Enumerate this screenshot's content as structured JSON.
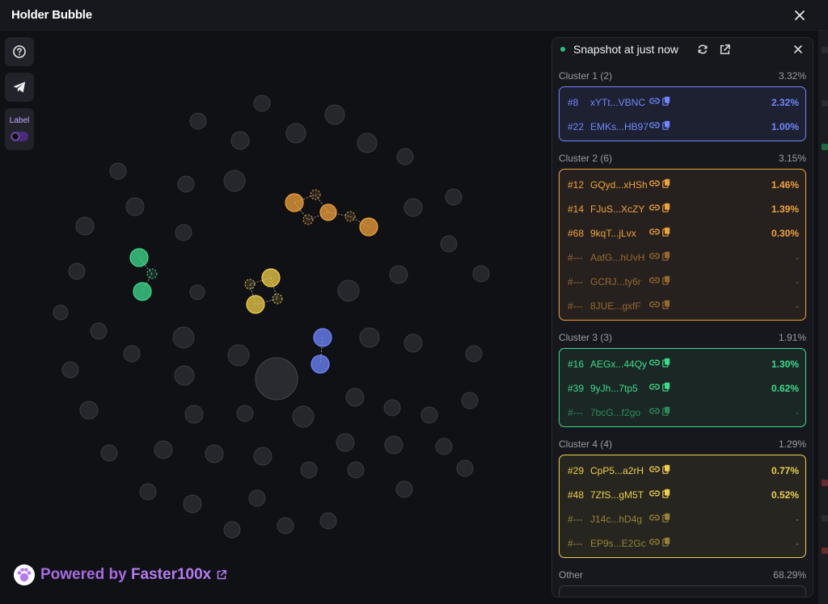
{
  "app": {
    "title": "Holder Bubble"
  },
  "toolbar": {
    "label_text": "Label",
    "label_toggle_on": false
  },
  "footer": {
    "powered_prefix": "Powered by",
    "powered_brand": "Faster100x"
  },
  "panel": {
    "snapshot_label": "Snapshot at just now",
    "clusters": [
      {
        "name": "Cluster 1 (2)",
        "pct": "3.32%",
        "color": "#6f87ff",
        "rows": [
          {
            "rank": "#8",
            "addr": "xYTt...VBNC",
            "value": "2.32%"
          },
          {
            "rank": "#22",
            "addr": "EMKs...HB97",
            "value": "1.00%"
          }
        ]
      },
      {
        "name": "Cluster 2 (6)",
        "pct": "3.15%",
        "color": "#f0a23a",
        "rows": [
          {
            "rank": "#12",
            "addr": "GQyd...xHSh",
            "value": "1.46%"
          },
          {
            "rank": "#14",
            "addr": "FJuS...XcZY",
            "value": "1.39%"
          },
          {
            "rank": "#68",
            "addr": "9kqT...jLvx",
            "value": "0.30%"
          },
          {
            "rank": "#---",
            "addr": "AafG...hUvH",
            "value": "-"
          },
          {
            "rank": "#---",
            "addr": "GCRJ...ty6r",
            "value": "-"
          },
          {
            "rank": "#---",
            "addr": "8JUE...gxfF",
            "value": "-"
          }
        ]
      },
      {
        "name": "Cluster 3 (3)",
        "pct": "1.91%",
        "color": "#3ddc8c",
        "rows": [
          {
            "rank": "#16",
            "addr": "AEGx...44Qy",
            "value": "1.30%"
          },
          {
            "rank": "#39",
            "addr": "9yJh...7tp5",
            "value": "0.62%"
          },
          {
            "rank": "#---",
            "addr": "7bcG...f2go",
            "value": "-"
          }
        ]
      },
      {
        "name": "Cluster 4 (4)",
        "pct": "1.29%",
        "color": "#f0cf4a",
        "rows": [
          {
            "rank": "#29",
            "addr": "CpP5...a2rH",
            "value": "0.77%"
          },
          {
            "rank": "#48",
            "addr": "7ZfS...gM5T",
            "value": "0.52%"
          },
          {
            "rank": "#---",
            "addr": "J14c...hD4g",
            "value": "-"
          },
          {
            "rank": "#---",
            "addr": "EP9s...E2Gc",
            "value": "-"
          }
        ]
      }
    ],
    "other": {
      "name": "Other",
      "pct": "68.29%"
    }
  }
}
